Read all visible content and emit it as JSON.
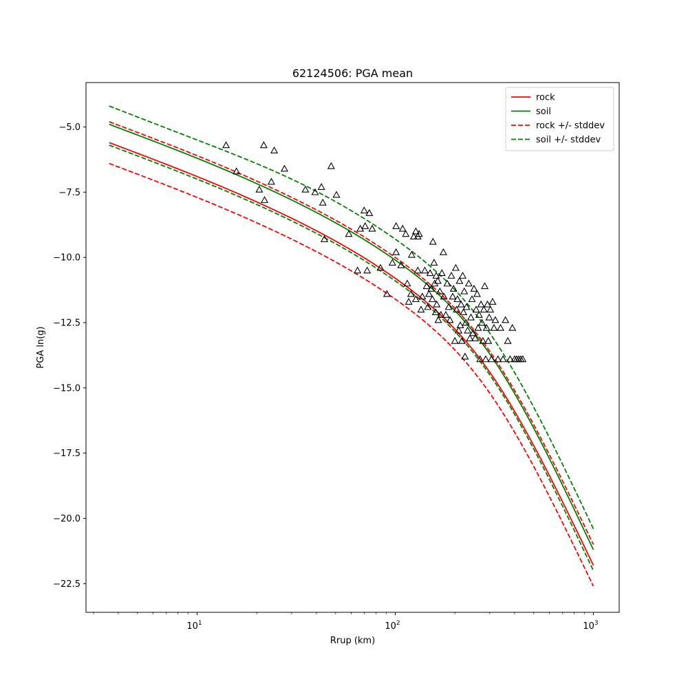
{
  "chart_data": {
    "type": "scatter",
    "title": "62124506: PGA mean",
    "xlabel": "Rrup (km)",
    "ylabel": "PGA ln(g)",
    "xscale": "log",
    "xlim": [
      2.75,
      1350
    ],
    "ylim": [
      -23.6,
      -3.3
    ],
    "grid": false,
    "legend_position": "top-right",
    "x_ticks": [
      {
        "value": 10,
        "base": "10",
        "exp": "1"
      },
      {
        "value": 100,
        "base": "10",
        "exp": "2"
      },
      {
        "value": 1000,
        "base": "10",
        "exp": "3"
      }
    ],
    "y_ticks": [
      {
        "value": -5.0,
        "label": "−5.0"
      },
      {
        "value": -7.5,
        "label": "−7.5"
      },
      {
        "value": -10.0,
        "label": "−10.0"
      },
      {
        "value": -12.5,
        "label": "−12.5"
      },
      {
        "value": -15.0,
        "label": "−15.0"
      },
      {
        "value": -17.5,
        "label": "−17.5"
      },
      {
        "value": -20.0,
        "label": "−20.0"
      },
      {
        "value": -22.5,
        "label": "−22.5"
      }
    ],
    "lines": [
      {
        "name": "rock",
        "color": "#ff0000",
        "dash": "solid",
        "x": [
          3.6,
          10,
          30,
          100,
          300,
          1000
        ],
        "y": [
          -5.6,
          -6.9,
          -8.5,
          -10.8,
          -14.4,
          -21.8
        ]
      },
      {
        "name": "soil",
        "color": "#008000",
        "dash": "solid",
        "x": [
          3.6,
          10,
          30,
          100,
          300,
          1000
        ],
        "y": [
          -4.9,
          -6.2,
          -7.8,
          -10.1,
          -13.7,
          -21.2
        ]
      },
      {
        "name": "rock +/- stddev",
        "color": "#ff0000",
        "dash": "dashed",
        "x": [
          3.6,
          10,
          30,
          100,
          300,
          1000
        ],
        "y": [
          -4.8,
          -6.1,
          -7.7,
          -10.0,
          -13.6,
          -21.0
        ]
      },
      {
        "name": "rock +/- stddev",
        "color": "#ff0000",
        "dash": "dashed",
        "legend": false,
        "x": [
          3.6,
          10,
          30,
          100,
          300,
          1000
        ],
        "y": [
          -6.4,
          -7.7,
          -9.3,
          -11.6,
          -15.2,
          -22.6
        ]
      },
      {
        "name": "soil +/- stddev",
        "color": "#008000",
        "dash": "dashed",
        "x": [
          3.6,
          10,
          30,
          100,
          300,
          1000
        ],
        "y": [
          -4.2,
          -5.5,
          -7.0,
          -9.3,
          -12.9,
          -20.4
        ]
      },
      {
        "name": "soil +/- stddev",
        "color": "#008000",
        "dash": "dashed",
        "legend": false,
        "x": [
          3.6,
          10,
          30,
          100,
          300,
          1000
        ],
        "y": [
          -5.7,
          -7.0,
          -8.6,
          -10.9,
          -14.5,
          -22.0
        ]
      }
    ],
    "points": {
      "marker": "open-triangle",
      "color": "#000000",
      "data": [
        [
          14.0,
          -5.7
        ],
        [
          15.8,
          -6.7
        ],
        [
          20.6,
          -7.4
        ],
        [
          21.7,
          -5.7
        ],
        [
          21.9,
          -7.8
        ],
        [
          23.7,
          -7.1
        ],
        [
          24.5,
          -5.9
        ],
        [
          27.6,
          -6.6
        ],
        [
          35.2,
          -7.4
        ],
        [
          39.4,
          -7.5
        ],
        [
          42.4,
          -7.3
        ],
        [
          43.1,
          -7.9
        ],
        [
          43.9,
          -9.3
        ],
        [
          47.5,
          -6.5
        ],
        [
          50.5,
          -7.6
        ],
        [
          58.3,
          -9.1
        ],
        [
          64.5,
          -10.5
        ],
        [
          66.6,
          -8.9
        ],
        [
          69.7,
          -8.2
        ],
        [
          70.5,
          -8.8
        ],
        [
          72.2,
          -10.5
        ],
        [
          74.0,
          -8.3
        ],
        [
          76.5,
          -8.9
        ],
        [
          84.2,
          -10.4
        ],
        [
          90.8,
          -11.4
        ],
        [
          96.8,
          -10.2
        ],
        [
          101.0,
          -8.8
        ],
        [
          101.0,
          -9.8
        ],
        [
          107.0,
          -10.3
        ],
        [
          109.0,
          -8.9
        ],
        [
          113.0,
          -9.1
        ],
        [
          115.0,
          -11.0
        ],
        [
          117.0,
          -11.7
        ],
        [
          120.0,
          -11.4
        ],
        [
          121.0,
          -9.9
        ],
        [
          124.0,
          -9.2
        ],
        [
          127.0,
          -9.0
        ],
        [
          127.0,
          -11.6
        ],
        [
          130.0,
          -9.2
        ],
        [
          130.0,
          -10.5
        ],
        [
          132.0,
          -9.1
        ],
        [
          135.0,
          -12.0
        ],
        [
          137.0,
          -11.5
        ],
        [
          141.0,
          -10.5
        ],
        [
          144.0,
          -11.1
        ],
        [
          146.0,
          -11.9
        ],
        [
          148.0,
          -11.4
        ],
        [
          150.0,
          -10.6
        ],
        [
          152.0,
          -11.2
        ],
        [
          154.0,
          -11.6
        ],
        [
          155.0,
          -9.4
        ],
        [
          157.0,
          -10.2
        ],
        [
          158.0,
          -11.0
        ],
        [
          160.0,
          -12.1
        ],
        [
          161.0,
          -10.7
        ],
        [
          162.0,
          -11.8
        ],
        [
          164.0,
          -10.9
        ],
        [
          165.0,
          -12.4
        ],
        [
          168.0,
          -11.3
        ],
        [
          170.0,
          -12.2
        ],
        [
          172.0,
          -10.6
        ],
        [
          175.0,
          -9.8
        ],
        [
          176.0,
          -11.5
        ],
        [
          180.0,
          -12.2
        ],
        [
          183.0,
          -11.0
        ],
        [
          186.0,
          -11.9
        ],
        [
          189.0,
          -12.4
        ],
        [
          192.0,
          -10.7
        ],
        [
          195.0,
          -11.5
        ],
        [
          197.0,
          -11.2
        ],
        [
          200.0,
          -13.2
        ],
        [
          202.0,
          -10.4
        ],
        [
          204.0,
          -12.0
        ],
        [
          206.0,
          -11.6
        ],
        [
          209.0,
          -12.8
        ],
        [
          211.0,
          -10.9
        ],
        [
          213.0,
          -12.6
        ],
        [
          215.0,
          -11.8
        ],
        [
          217.0,
          -13.2
        ],
        [
          219.0,
          -10.7
        ],
        [
          221.0,
          -12.1
        ],
        [
          223.0,
          -11.3
        ],
        [
          225.0,
          -13.8
        ],
        [
          227.0,
          -12.5
        ],
        [
          229.0,
          -11.9
        ],
        [
          232.0,
          -12.8
        ],
        [
          235.0,
          -11.0
        ],
        [
          238.0,
          -13.1
        ],
        [
          241.0,
          -12.3
        ],
        [
          244.0,
          -11.6
        ],
        [
          247.0,
          -12.9
        ],
        [
          250.0,
          -11.2
        ],
        [
          253.0,
          -13.1
        ],
        [
          256.0,
          -12.0
        ],
        [
          259.0,
          -11.4
        ],
        [
          262.0,
          -12.7
        ],
        [
          265.0,
          -12.2
        ],
        [
          268.0,
          -13.9
        ],
        [
          271.0,
          -11.8
        ],
        [
          274.0,
          -12.5
        ],
        [
          277.0,
          -13.2
        ],
        [
          280.0,
          -12.0
        ],
        [
          283.0,
          -11.1
        ],
        [
          286.0,
          -13.9
        ],
        [
          289.0,
          -12.7
        ],
        [
          292.0,
          -11.8
        ],
        [
          295.0,
          -13.2
        ],
        [
          298.0,
          -12.3
        ],
        [
          302.0,
          -12.0
        ],
        [
          306.0,
          -13.9
        ],
        [
          310.0,
          -11.7
        ],
        [
          315.0,
          -12.7
        ],
        [
          320.0,
          -12.4
        ],
        [
          330.0,
          -13.9
        ],
        [
          340.0,
          -12.7
        ],
        [
          350.0,
          -13.9
        ],
        [
          360.0,
          -12.4
        ],
        [
          370.0,
          -13.2
        ],
        [
          380.0,
          -13.9
        ],
        [
          390.0,
          -12.7
        ],
        [
          400.0,
          -13.9
        ],
        [
          410.0,
          -13.9
        ],
        [
          420.0,
          -13.9
        ],
        [
          430.0,
          -13.9
        ],
        [
          440.0,
          -13.9
        ]
      ]
    }
  }
}
